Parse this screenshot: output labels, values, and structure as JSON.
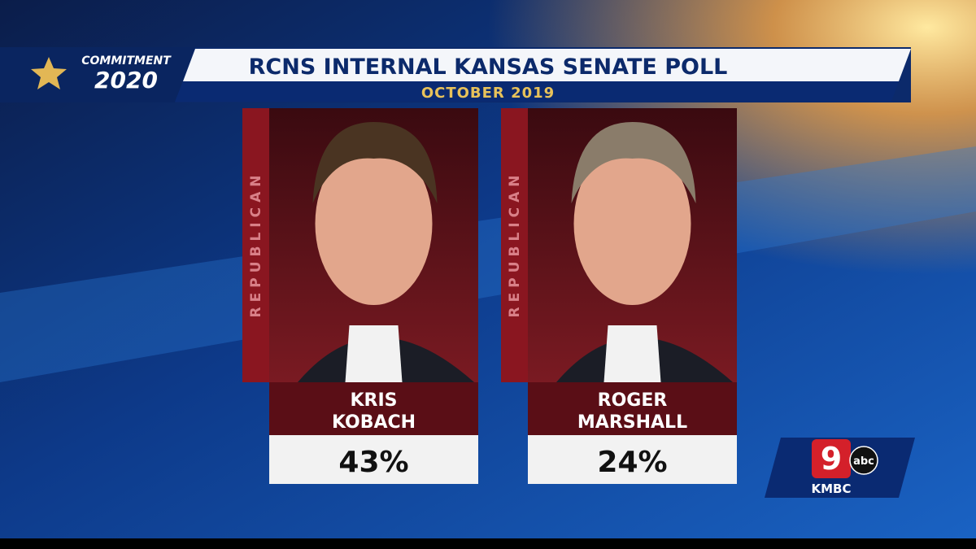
{
  "branding": {
    "show_line1": "COMMITMENT",
    "show_line2": "2020",
    "station_number": "9",
    "network": "abc",
    "station": "KMBC"
  },
  "header": {
    "title": "RCNS INTERNAL KANSAS SENATE POLL",
    "subtitle": "OCTOBER 2019"
  },
  "candidates": [
    {
      "party": "REPUBLICAN",
      "first_name": "KRIS",
      "last_name": "KOBACH",
      "result": "43%"
    },
    {
      "party": "REPUBLICAN",
      "first_name": "ROGER",
      "last_name": "MARSHALL",
      "result": "24%"
    }
  ]
}
